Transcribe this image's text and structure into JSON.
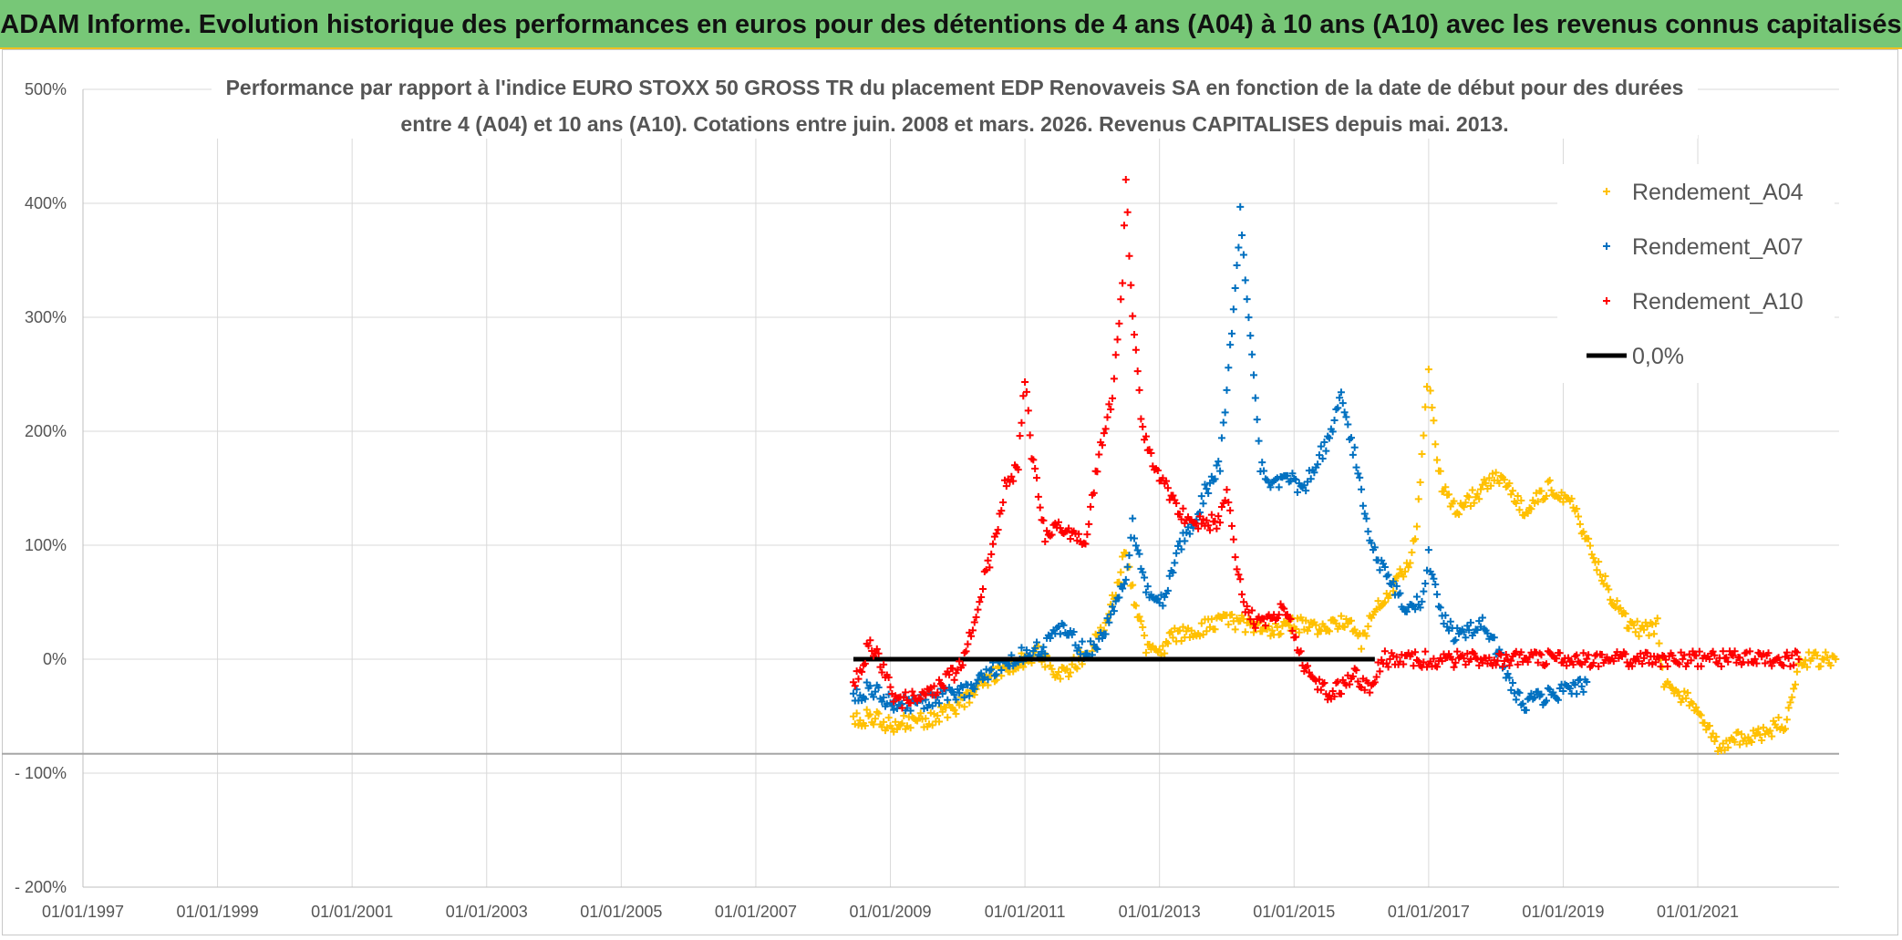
{
  "header": {
    "title": "ADAM Informe. Evolution historique des performances en euros pour des détentions de 4 ans (A04) à 10 ans (A10) avec les revenus connus capitalisés"
  },
  "colors": {
    "banner": "#77c777",
    "a04": "#ffc000",
    "a07": "#0070c0",
    "a10": "#ff0000",
    "zero": "#000000"
  },
  "chart_data": {
    "type": "scatter",
    "title_lines": [
      "Performance par rapport à l'indice EURO STOXX 50 GROSS TR  du placement EDP Renovaveis SA en fonction de la date de début pour des durées",
      "entre 4 (A04) et 10 ans (A10). Cotations entre juin. 2008 et mars. 2026. Revenus CAPITALISES depuis mai. 2013."
    ],
    "x_tick_labels": [
      "01/01/1997",
      "01/01/1999",
      "01/01/2001",
      "01/01/2003",
      "01/01/2005",
      "01/01/2007",
      "01/01/2009",
      "01/01/2011",
      "01/01/2013",
      "01/01/2015",
      "01/01/2017",
      "01/01/2019",
      "01/01/2021"
    ],
    "x_tick_years": [
      1997,
      1999,
      2001,
      2003,
      2005,
      2007,
      2009,
      2011,
      2013,
      2015,
      2017,
      2019,
      2021
    ],
    "xlim": [
      1997,
      2023.1
    ],
    "y_tick_labels": [
      "500%",
      "400%",
      "300%",
      "200%",
      "100%",
      "0%",
      "- 100%",
      "- 200%"
    ],
    "y_tick_values": [
      500,
      400,
      300,
      200,
      100,
      0,
      -100,
      -200
    ],
    "ylim": [
      -200,
      500
    ],
    "grid": true,
    "legend_position": "top-right",
    "series": [
      {
        "name": "Rendement_A04",
        "color": "#ffc000",
        "points": [
          [
            2008.45,
            -55
          ],
          [
            2008.7,
            -50
          ],
          [
            2009.0,
            -58
          ],
          [
            2009.3,
            -55
          ],
          [
            2009.6,
            -52
          ],
          [
            2009.9,
            -45
          ],
          [
            2010.2,
            -30
          ],
          [
            2010.5,
            -15
          ],
          [
            2010.8,
            -5
          ],
          [
            2011.0,
            0
          ],
          [
            2011.2,
            5
          ],
          [
            2011.4,
            -8
          ],
          [
            2011.6,
            -12
          ],
          [
            2011.8,
            0
          ],
          [
            2012.0,
            10
          ],
          [
            2012.2,
            30
          ],
          [
            2012.35,
            60
          ],
          [
            2012.5,
            95
          ],
          [
            2012.65,
            45
          ],
          [
            2012.8,
            10
          ],
          [
            2013.0,
            5
          ],
          [
            2013.2,
            20
          ],
          [
            2013.5,
            25
          ],
          [
            2013.8,
            30
          ],
          [
            2014.0,
            35
          ],
          [
            2014.3,
            30
          ],
          [
            2014.6,
            25
          ],
          [
            2014.9,
            30
          ],
          [
            2015.2,
            30
          ],
          [
            2015.5,
            28
          ],
          [
            2015.8,
            35
          ],
          [
            2016.0,
            15
          ],
          [
            2016.2,
            45
          ],
          [
            2016.4,
            60
          ],
          [
            2016.6,
            75
          ],
          [
            2016.8,
            100
          ],
          [
            2017.0,
            255
          ],
          [
            2017.1,
            190
          ],
          [
            2017.2,
            150
          ],
          [
            2017.4,
            130
          ],
          [
            2017.6,
            140
          ],
          [
            2017.8,
            150
          ],
          [
            2018.0,
            160
          ],
          [
            2018.2,
            150
          ],
          [
            2018.4,
            130
          ],
          [
            2018.6,
            140
          ],
          [
            2018.8,
            150
          ],
          [
            2019.0,
            145
          ],
          [
            2019.2,
            130
          ],
          [
            2019.4,
            95
          ],
          [
            2019.6,
            70
          ],
          [
            2019.8,
            45
          ],
          [
            2020.0,
            30
          ],
          [
            2020.2,
            25
          ],
          [
            2020.4,
            30
          ],
          [
            2020.5,
            -20
          ],
          [
            2020.7,
            -30
          ],
          [
            2020.9,
            -35
          ],
          [
            2021.1,
            -55
          ],
          [
            2021.3,
            -75
          ],
          [
            2021.5,
            -72
          ],
          [
            2021.8,
            -68
          ],
          [
            2022.0,
            -65
          ],
          [
            2022.2,
            -58
          ],
          [
            2022.3,
            -65
          ],
          [
            2022.5,
            0
          ],
          [
            2022.8,
            0
          ],
          [
            2023.05,
            0
          ]
        ]
      },
      {
        "name": "Rendement_A07",
        "color": "#0070c0",
        "points": [
          [
            2008.45,
            -35
          ],
          [
            2008.7,
            -25
          ],
          [
            2009.0,
            -38
          ],
          [
            2009.3,
            -40
          ],
          [
            2009.6,
            -35
          ],
          [
            2009.9,
            -30
          ],
          [
            2010.2,
            -25
          ],
          [
            2010.5,
            -10
          ],
          [
            2010.8,
            0
          ],
          [
            2011.0,
            5
          ],
          [
            2011.3,
            10
          ],
          [
            2011.5,
            30
          ],
          [
            2011.7,
            20
          ],
          [
            2011.9,
            5
          ],
          [
            2012.1,
            15
          ],
          [
            2012.3,
            40
          ],
          [
            2012.5,
            75
          ],
          [
            2012.6,
            120
          ],
          [
            2012.75,
            70
          ],
          [
            2012.9,
            50
          ],
          [
            2013.1,
            55
          ],
          [
            2013.3,
            100
          ],
          [
            2013.5,
            120
          ],
          [
            2013.7,
            150
          ],
          [
            2013.9,
            170
          ],
          [
            2014.0,
            240
          ],
          [
            2014.1,
            300
          ],
          [
            2014.2,
            390
          ],
          [
            2014.3,
            320
          ],
          [
            2014.5,
            170
          ],
          [
            2014.7,
            150
          ],
          [
            2014.9,
            165
          ],
          [
            2015.1,
            145
          ],
          [
            2015.3,
            170
          ],
          [
            2015.5,
            190
          ],
          [
            2015.7,
            230
          ],
          [
            2015.9,
            180
          ],
          [
            2016.1,
            110
          ],
          [
            2016.3,
            80
          ],
          [
            2016.5,
            60
          ],
          [
            2016.7,
            45
          ],
          [
            2016.9,
            50
          ],
          [
            2017.0,
            90
          ],
          [
            2017.2,
            40
          ],
          [
            2017.4,
            20
          ],
          [
            2017.6,
            25
          ],
          [
            2017.8,
            30
          ],
          [
            2018.0,
            10
          ],
          [
            2018.2,
            -20
          ],
          [
            2018.4,
            -40
          ],
          [
            2018.6,
            -35
          ],
          [
            2018.8,
            -32
          ],
          [
            2019.0,
            -28
          ],
          [
            2019.2,
            -25
          ],
          [
            2019.35,
            -20
          ]
        ]
      },
      {
        "name": "Rendement_A10",
        "color": "#ff0000",
        "points": [
          [
            2008.45,
            -25
          ],
          [
            2008.7,
            15
          ],
          [
            2008.9,
            -10
          ],
          [
            2009.1,
            -38
          ],
          [
            2009.3,
            -35
          ],
          [
            2009.6,
            -30
          ],
          [
            2009.9,
            -15
          ],
          [
            2010.1,
            0
          ],
          [
            2010.3,
            50
          ],
          [
            2010.5,
            90
          ],
          [
            2010.7,
            150
          ],
          [
            2010.9,
            170
          ],
          [
            2011.0,
            250
          ],
          [
            2011.1,
            180
          ],
          [
            2011.3,
            110
          ],
          [
            2011.5,
            120
          ],
          [
            2011.7,
            110
          ],
          [
            2011.9,
            100
          ],
          [
            2012.1,
            180
          ],
          [
            2012.3,
            230
          ],
          [
            2012.45,
            330
          ],
          [
            2012.5,
            420
          ],
          [
            2012.6,
            300
          ],
          [
            2012.75,
            200
          ],
          [
            2012.9,
            170
          ],
          [
            2013.1,
            150
          ],
          [
            2013.3,
            130
          ],
          [
            2013.5,
            120
          ],
          [
            2013.7,
            120
          ],
          [
            2013.9,
            120
          ],
          [
            2014.0,
            150
          ],
          [
            2014.1,
            100
          ],
          [
            2014.3,
            40
          ],
          [
            2014.5,
            30
          ],
          [
            2014.7,
            40
          ],
          [
            2014.9,
            45
          ],
          [
            2015.1,
            0
          ],
          [
            2015.3,
            -20
          ],
          [
            2015.5,
            -30
          ],
          [
            2015.7,
            -25
          ],
          [
            2015.9,
            -15
          ],
          [
            2016.1,
            -25
          ],
          [
            2016.2,
            -15
          ],
          [
            2016.3,
            0
          ],
          [
            2017.0,
            0
          ],
          [
            2018.0,
            0
          ],
          [
            2019.0,
            0
          ],
          [
            2020.0,
            0
          ],
          [
            2021.0,
            0
          ],
          [
            2022.0,
            0
          ],
          [
            2022.5,
            0
          ]
        ]
      },
      {
        "name": "0,0%",
        "color": "#000000",
        "line": [
          [
            2008.45,
            0
          ],
          [
            2016.2,
            0
          ]
        ]
      }
    ]
  }
}
